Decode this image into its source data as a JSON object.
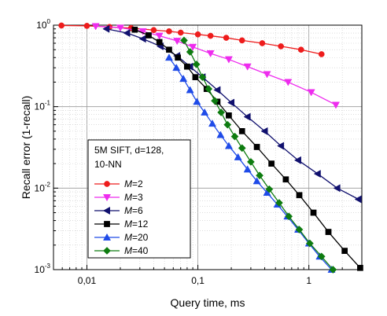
{
  "chart_data": {
    "type": "line",
    "xscale": "log",
    "yscale": "log",
    "xlim": [
      0.005,
      3
    ],
    "ylim": [
      0.001,
      1
    ],
    "grid": "major and minor, dotted",
    "xlabel": "Query time, ms",
    "ylabel": "Recall error (1-recall)",
    "x_tick_labels": [
      {
        "value": 0.01,
        "label": "0,01"
      },
      {
        "value": 0.1,
        "label": "0,1"
      },
      {
        "value": 1,
        "label": "1"
      }
    ],
    "y_tick_labels": [
      {
        "value": 1,
        "base": "10",
        "exp": "0"
      },
      {
        "value": 0.1,
        "base": "10",
        "exp": "-1"
      },
      {
        "value": 0.01,
        "base": "10",
        "exp": "-2"
      },
      {
        "value": 0.001,
        "base": "10",
        "exp": "-3"
      }
    ],
    "legend": {
      "placement": "lower-left",
      "title_lines": [
        "5M SIFT, d=128,",
        "10-NN"
      ]
    },
    "series": [
      {
        "name": "M=2",
        "label_italic": "M",
        "label_rest": "=2",
        "color": "#ee1c1c",
        "marker": "circle",
        "x": [
          0.0059,
          0.01,
          0.016,
          0.025,
          0.04,
          0.055,
          0.07,
          0.1,
          0.13,
          0.18,
          0.25,
          0.38,
          0.56,
          0.85,
          1.3
        ],
        "y": [
          0.99,
          0.98,
          0.95,
          0.92,
          0.87,
          0.84,
          0.81,
          0.77,
          0.74,
          0.7,
          0.65,
          0.6,
          0.55,
          0.5,
          0.44
        ]
      },
      {
        "name": "M=3",
        "label_italic": "M",
        "label_rest": "=3",
        "color": "#ee2cee",
        "marker": "triangle-down",
        "x": [
          0.012,
          0.02,
          0.032,
          0.045,
          0.065,
          0.09,
          0.13,
          0.19,
          0.28,
          0.42,
          0.65,
          1.05,
          1.75
        ],
        "y": [
          0.97,
          0.93,
          0.84,
          0.74,
          0.64,
          0.54,
          0.45,
          0.38,
          0.31,
          0.25,
          0.2,
          0.15,
          0.105
        ]
      },
      {
        "name": "M=6",
        "label_italic": "M",
        "label_rest": "=6",
        "color": "#10106e",
        "marker": "triangle-left",
        "x": [
          0.015,
          0.023,
          0.032,
          0.046,
          0.065,
          0.085,
          0.11,
          0.15,
          0.2,
          0.28,
          0.4,
          0.56,
          0.8,
          1.2,
          1.8,
          2.8
        ],
        "y": [
          0.9,
          0.8,
          0.68,
          0.55,
          0.42,
          0.31,
          0.23,
          0.16,
          0.112,
          0.075,
          0.05,
          0.033,
          0.022,
          0.015,
          0.01,
          0.0073
        ]
      },
      {
        "name": "M=12",
        "label_italic": "M",
        "label_rest": "=12",
        "color": "#000000",
        "marker": "square",
        "x": [
          0.027,
          0.036,
          0.045,
          0.055,
          0.066,
          0.08,
          0.095,
          0.12,
          0.15,
          0.19,
          0.25,
          0.34,
          0.46,
          0.62,
          0.82,
          1.1,
          1.5,
          2.1,
          2.9
        ],
        "y": [
          0.88,
          0.75,
          0.62,
          0.5,
          0.4,
          0.31,
          0.23,
          0.165,
          0.115,
          0.078,
          0.05,
          0.032,
          0.02,
          0.0128,
          0.0082,
          0.005,
          0.0029,
          0.0017,
          0.00105
        ]
      },
      {
        "name": "M=20",
        "label_italic": "M",
        "label_rest": "=20",
        "color": "#1f4be8",
        "marker": "triangle-up",
        "x": [
          0.055,
          0.064,
          0.074,
          0.085,
          0.098,
          0.115,
          0.135,
          0.16,
          0.19,
          0.23,
          0.28,
          0.34,
          0.42,
          0.52,
          0.64,
          0.8,
          1.0,
          1.25,
          1.6
        ],
        "y": [
          0.4,
          0.3,
          0.22,
          0.16,
          0.115,
          0.085,
          0.062,
          0.045,
          0.033,
          0.024,
          0.017,
          0.0122,
          0.0088,
          0.0063,
          0.0045,
          0.0031,
          0.0021,
          0.00145,
          0.001
        ]
      },
      {
        "name": "M=40",
        "label_italic": "M",
        "label_rest": "=40",
        "color": "#0e7c10",
        "marker": "diamond",
        "x": [
          0.075,
          0.085,
          0.097,
          0.11,
          0.125,
          0.142,
          0.162,
          0.185,
          0.215,
          0.25,
          0.3,
          0.36,
          0.44,
          0.54,
          0.66,
          0.82,
          1.02,
          1.3,
          1.65
        ],
        "y": [
          0.65,
          0.47,
          0.33,
          0.23,
          0.165,
          0.118,
          0.085,
          0.06,
          0.043,
          0.031,
          0.021,
          0.0143,
          0.0097,
          0.0066,
          0.0045,
          0.0031,
          0.0021,
          0.00145,
          0.001
        ]
      }
    ]
  }
}
